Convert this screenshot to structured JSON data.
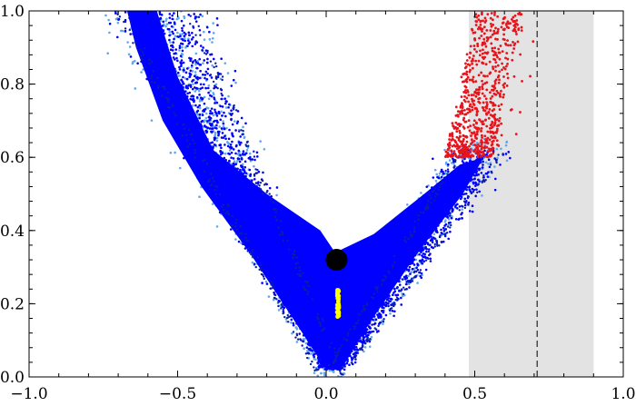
{
  "chart_data": {
    "type": "scatter",
    "title": "",
    "xlabel": "",
    "ylabel": "",
    "xlim": [
      -1.0,
      1.0
    ],
    "ylim": [
      0.0,
      1.0
    ],
    "x_ticks": [
      -1.0,
      -0.5,
      0.0,
      0.5,
      1.0
    ],
    "x_tick_labels": [
      "−1.0",
      "−0.5",
      "0.0",
      "0.5",
      "1.0"
    ],
    "y_ticks": [
      0.0,
      0.2,
      0.4,
      0.6,
      0.8,
      1.0
    ],
    "y_tick_labels": [
      "0.0",
      "0.2",
      "0.4",
      "0.6",
      "0.8",
      "1.0"
    ],
    "grid": false,
    "shaded_region": {
      "x_range": [
        0.48,
        0.9
      ],
      "color": "#e3e3e3"
    },
    "vertical_line": {
      "x": 0.71,
      "style": "dashed",
      "color": "#000000"
    },
    "series": [
      {
        "color": "#5fa8ef",
        "shape": "V-shaped point cloud, lower edge",
        "outline": [
          [
            -0.67,
            1.0
          ],
          [
            0.01,
            0.0
          ],
          [
            0.57,
            0.62
          ]
        ]
      },
      {
        "color": "#0000ff",
        "shape": "V-shaped dense point cloud, vertex near (0.02, 0.0)",
        "left_arm": [
          [
            -0.67,
            1.0
          ],
          [
            -0.57,
            1.0
          ],
          [
            0.0,
            0.4
          ]
        ],
        "right_arm": [
          [
            0.02,
            0.35
          ],
          [
            0.34,
            0.57
          ],
          [
            0.55,
            0.64
          ]
        ]
      },
      {
        "color": "#e8141c",
        "shape": "point cloud, upper-right",
        "x_range": [
          0.4,
          0.7
        ],
        "y_range": [
          0.6,
          1.0
        ]
      },
      {
        "color": "#ffff00",
        "shape": "short vertical segment",
        "x": 0.04,
        "y_range": [
          0.16,
          0.24
        ]
      },
      {
        "color": "#000000",
        "shape": "single large marker",
        "points": [
          [
            0.035,
            0.32
          ]
        ]
      }
    ]
  }
}
